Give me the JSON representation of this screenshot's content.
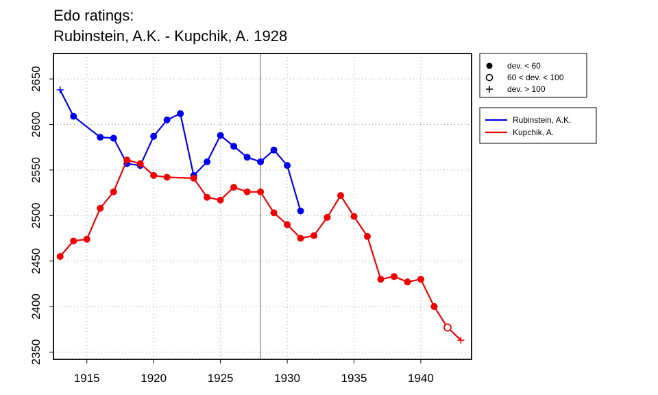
{
  "title_line1": "Edo ratings:",
  "title_line2": "Rubinstein, A.K. - Kupchik, A. 1928",
  "chart_data": {
    "type": "line",
    "xlim": [
      1912.5,
      1943.8
    ],
    "ylim": [
      2342,
      2678
    ],
    "x_ticks": [
      1915,
      1920,
      1925,
      1930,
      1935,
      1940
    ],
    "y_ticks": [
      2350,
      2400,
      2450,
      2500,
      2550,
      2600,
      2650
    ],
    "grid": true,
    "vline_x": 1928,
    "legend_markers": {
      "placement": "top-right-outside",
      "entries": [
        {
          "label": "dev. < 60",
          "marker": "filled-circle"
        },
        {
          "label": "60 < dev. < 100",
          "marker": "open-circle"
        },
        {
          "label": "dev. > 100",
          "marker": "plus"
        }
      ]
    },
    "legend_series": {
      "placement": "right-outside",
      "entries": [
        {
          "label": "Rubinstein, A.K.",
          "color": "#0000ee"
        },
        {
          "label": "Kupchik, A.",
          "color": "#ee0000"
        }
      ]
    },
    "series": [
      {
        "name": "Rubinstein, A.K.",
        "color": "#0000ee",
        "points": [
          {
            "x": 1913,
            "y": 2638,
            "marker": "plus"
          },
          {
            "x": 1914,
            "y": 2609,
            "marker": "filled"
          },
          {
            "x": 1916,
            "y": 2586,
            "marker": "filled"
          },
          {
            "x": 1917,
            "y": 2585,
            "marker": "filled"
          },
          {
            "x": 1918,
            "y": 2557,
            "marker": "filled"
          },
          {
            "x": 1919,
            "y": 2555,
            "marker": "filled"
          },
          {
            "x": 1920,
            "y": 2587,
            "marker": "filled"
          },
          {
            "x": 1921,
            "y": 2605,
            "marker": "filled"
          },
          {
            "x": 1922,
            "y": 2612,
            "marker": "filled"
          },
          {
            "x": 1923,
            "y": 2544,
            "marker": "filled"
          },
          {
            "x": 1924,
            "y": 2559,
            "marker": "filled"
          },
          {
            "x": 1925,
            "y": 2588,
            "marker": "filled"
          },
          {
            "x": 1926,
            "y": 2576,
            "marker": "filled"
          },
          {
            "x": 1927,
            "y": 2564,
            "marker": "filled"
          },
          {
            "x": 1928,
            "y": 2559,
            "marker": "filled"
          },
          {
            "x": 1929,
            "y": 2572,
            "marker": "filled"
          },
          {
            "x": 1930,
            "y": 2555,
            "marker": "filled"
          },
          {
            "x": 1931,
            "y": 2505,
            "marker": "filled"
          }
        ]
      },
      {
        "name": "Kupchik, A.",
        "color": "#ee0000",
        "points": [
          {
            "x": 1913,
            "y": 2455,
            "marker": "filled"
          },
          {
            "x": 1914,
            "y": 2472,
            "marker": "filled"
          },
          {
            "x": 1915,
            "y": 2474,
            "marker": "filled"
          },
          {
            "x": 1916,
            "y": 2508,
            "marker": "filled"
          },
          {
            "x": 1917,
            "y": 2526,
            "marker": "filled"
          },
          {
            "x": 1918,
            "y": 2561,
            "marker": "filled"
          },
          {
            "x": 1919,
            "y": 2557,
            "marker": "filled"
          },
          {
            "x": 1920,
            "y": 2544,
            "marker": "filled"
          },
          {
            "x": 1921,
            "y": 2542,
            "marker": "filled"
          },
          {
            "x": 1923,
            "y": 2541,
            "marker": "filled"
          },
          {
            "x": 1924,
            "y": 2520,
            "marker": "filled"
          },
          {
            "x": 1925,
            "y": 2517,
            "marker": "filled"
          },
          {
            "x": 1926,
            "y": 2531,
            "marker": "filled"
          },
          {
            "x": 1927,
            "y": 2526,
            "marker": "filled"
          },
          {
            "x": 1928,
            "y": 2526,
            "marker": "filled"
          },
          {
            "x": 1929,
            "y": 2503,
            "marker": "filled"
          },
          {
            "x": 1930,
            "y": 2490,
            "marker": "filled"
          },
          {
            "x": 1931,
            "y": 2475,
            "marker": "filled"
          },
          {
            "x": 1932,
            "y": 2478,
            "marker": "filled"
          },
          {
            "x": 1933,
            "y": 2498,
            "marker": "filled"
          },
          {
            "x": 1934,
            "y": 2522,
            "marker": "filled"
          },
          {
            "x": 1935,
            "y": 2499,
            "marker": "filled"
          },
          {
            "x": 1936,
            "y": 2477,
            "marker": "filled"
          },
          {
            "x": 1937,
            "y": 2430,
            "marker": "filled"
          },
          {
            "x": 1938,
            "y": 2433,
            "marker": "filled"
          },
          {
            "x": 1939,
            "y": 2427,
            "marker": "filled"
          },
          {
            "x": 1940,
            "y": 2430,
            "marker": "filled"
          },
          {
            "x": 1941,
            "y": 2400,
            "marker": "filled"
          },
          {
            "x": 1942,
            "y": 2377,
            "marker": "open"
          },
          {
            "x": 1943,
            "y": 2363,
            "marker": "plus"
          }
        ]
      }
    ]
  }
}
